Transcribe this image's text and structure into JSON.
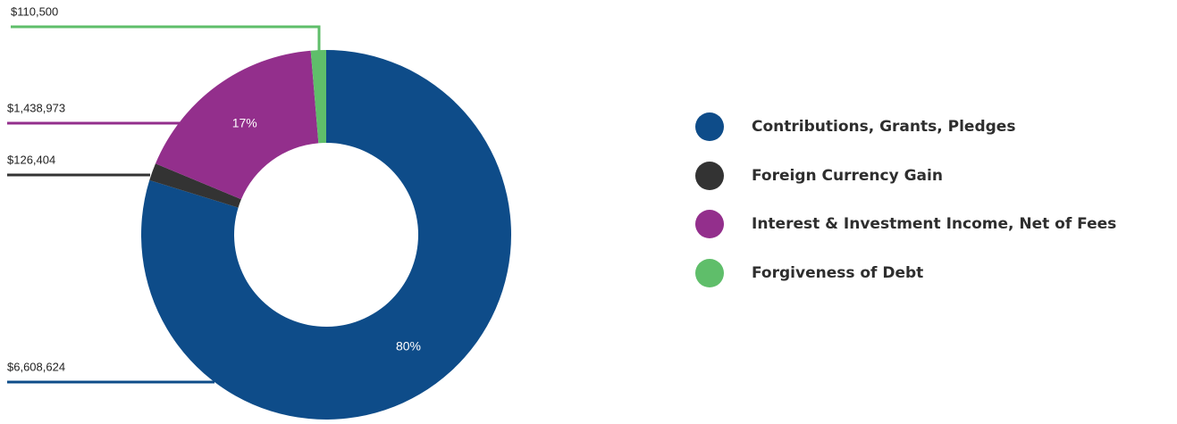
{
  "chart_data": {
    "type": "pie",
    "variant": "donut",
    "title": "",
    "series": [
      {
        "name": "Contributions, Grants, Pledges",
        "value": 6608624,
        "value_label": "$6,608,624",
        "percent_label": "80%",
        "color": "#0e4c89"
      },
      {
        "name": "Foreign Currency Gain",
        "value": 126404,
        "value_label": "$126,404",
        "percent_label": "",
        "color": "#333333"
      },
      {
        "name": "Interest & Investment Income, Net of Fees",
        "value": 1438973,
        "value_label": "$1,438,973",
        "percent_label": "17%",
        "color": "#932f8c"
      },
      {
        "name": "Forgiveness of Debt",
        "value": 110500,
        "value_label": "$110,500",
        "percent_label": "",
        "color": "#5fbe6a"
      }
    ],
    "legend_position": "right"
  }
}
